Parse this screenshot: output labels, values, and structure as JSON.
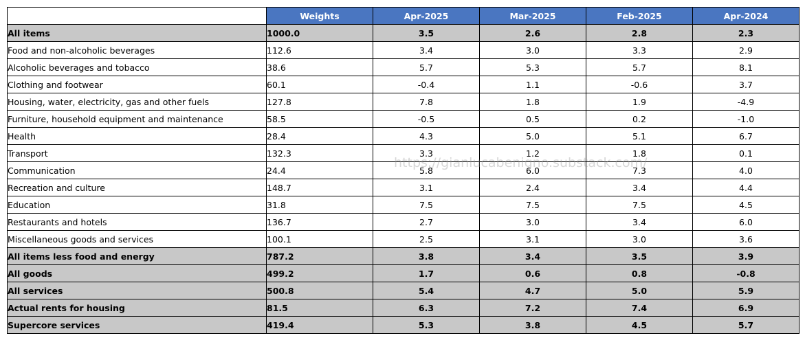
{
  "colors": {
    "header_bg": "#4a76c1",
    "header_text": "#ffffff",
    "summary_bg": "#c8c8c8",
    "row_bg": "#ffffff",
    "border": "#000000"
  },
  "watermark": "https://gianlucabenigno.substack.com/",
  "chart_data": {
    "type": "table",
    "columns": [
      "Weights",
      "Apr-2025",
      "Mar-2025",
      "Feb-2025",
      "Apr-2024"
    ],
    "rows": [
      {
        "label": "All items",
        "summary": true,
        "weight": "1000.0",
        "values": [
          "3.5",
          "2.6",
          "2.8",
          "2.3"
        ]
      },
      {
        "label": "Food and non-alcoholic beverages",
        "summary": false,
        "weight": "112.6",
        "values": [
          "3.4",
          "3.0",
          "3.3",
          "2.9"
        ]
      },
      {
        "label": "Alcoholic beverages and tobacco",
        "summary": false,
        "weight": "38.6",
        "values": [
          "5.7",
          "5.3",
          "5.7",
          "8.1"
        ]
      },
      {
        "label": "Clothing and footwear",
        "summary": false,
        "weight": "60.1",
        "values": [
          "-0.4",
          "1.1",
          "-0.6",
          "3.7"
        ]
      },
      {
        "label": "Housing, water, electricity, gas and other fuels",
        "summary": false,
        "weight": "127.8",
        "values": [
          "7.8",
          "1.8",
          "1.9",
          "-4.9"
        ]
      },
      {
        "label": "Furniture, household equipment and maintenance",
        "summary": false,
        "weight": "58.5",
        "values": [
          "-0.5",
          "0.5",
          "0.2",
          "-1.0"
        ]
      },
      {
        "label": "Health",
        "summary": false,
        "weight": "28.4",
        "values": [
          "4.3",
          "5.0",
          "5.1",
          "6.7"
        ]
      },
      {
        "label": "Transport",
        "summary": false,
        "weight": "132.3",
        "values": [
          "3.3",
          "1.2",
          "1.8",
          "0.1"
        ]
      },
      {
        "label": "Communication",
        "summary": false,
        "weight": "24.4",
        "values": [
          "5.8",
          "6.0",
          "7.3",
          "4.0"
        ]
      },
      {
        "label": "Recreation and culture",
        "summary": false,
        "weight": "148.7",
        "values": [
          "3.1",
          "2.4",
          "3.4",
          "4.4"
        ]
      },
      {
        "label": "Education",
        "summary": false,
        "weight": "31.8",
        "values": [
          "7.5",
          "7.5",
          "7.5",
          "4.5"
        ]
      },
      {
        "label": "Restaurants and hotels",
        "summary": false,
        "weight": "136.7",
        "values": [
          "2.7",
          "3.0",
          "3.4",
          "6.0"
        ]
      },
      {
        "label": "Miscellaneous goods and services",
        "summary": false,
        "weight": "100.1",
        "values": [
          "2.5",
          "3.1",
          "3.0",
          "3.6"
        ]
      },
      {
        "label": "All items less food and energy",
        "summary": true,
        "weight": "787.2",
        "values": [
          "3.8",
          "3.4",
          "3.5",
          "3.9"
        ]
      },
      {
        "label": "All goods",
        "summary": true,
        "weight": "499.2",
        "values": [
          "1.7",
          "0.6",
          "0.8",
          "-0.8"
        ]
      },
      {
        "label": "All services",
        "summary": true,
        "weight": "500.8",
        "values": [
          "5.4",
          "4.7",
          "5.0",
          "5.9"
        ]
      },
      {
        "label": "Actual rents for housing",
        "summary": true,
        "weight": "81.5",
        "values": [
          "6.3",
          "7.2",
          "7.4",
          "6.9"
        ]
      },
      {
        "label": "Supercore services",
        "summary": true,
        "weight": "419.4",
        "values": [
          "5.3",
          "3.8",
          "4.5",
          "5.7"
        ]
      }
    ]
  }
}
